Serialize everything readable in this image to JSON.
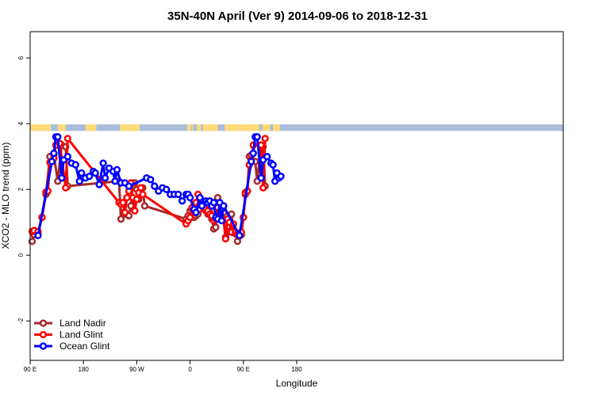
{
  "chart_data": {
    "type": "line",
    "title": "35N-40N April (Ver 9)   2014-09-06 to 2018-12-31",
    "xlabel": "Longitude",
    "ylabel": "XCO2 - MLO trend (ppm)",
    "xlim": [
      -90,
      180
    ],
    "ylim": [
      -3.2,
      6.8
    ],
    "x_ticks": [
      {
        "value": -90,
        "label": "90 E"
      },
      {
        "value": -63,
        "label": "180"
      },
      {
        "value": -36,
        "label": "90 W"
      },
      {
        "value": -9,
        "label": "0"
      },
      {
        "value": 18,
        "label": "90 E"
      },
      {
        "value": 45,
        "label": "180"
      }
    ],
    "y_ticks": [
      {
        "value": -2,
        "label": "-2"
      },
      {
        "value": 0,
        "label": "0"
      },
      {
        "value": 2,
        "label": "2"
      },
      {
        "value": 4,
        "label": "4"
      },
      {
        "value": 6,
        "label": "6"
      }
    ],
    "grid": false,
    "legend_position": "bottom-left",
    "surface_band": {
      "y_range": [
        3.78,
        3.98
      ],
      "land_color": "#FFDB7A",
      "ocean_color": "#A9BEDC",
      "land_segments": [
        [
          -90,
          -79.5
        ],
        [
          -76,
          -72
        ],
        [
          -62,
          -56.5
        ],
        [
          -44.5,
          -34.5
        ],
        [
          -10.5,
          -8.5
        ],
        [
          -8,
          -7.5
        ],
        [
          -5.5,
          -3.5
        ],
        [
          -2.5,
          5
        ],
        [
          8.5,
          26
        ],
        [
          27.5,
          31.5
        ],
        [
          33,
          36.5
        ]
      ]
    },
    "series": [
      {
        "name": "Land Nadir",
        "color": "#A52A2A",
        "points": [
          [
            -89,
            0.42
          ],
          [
            -88,
            0.62
          ],
          [
            -86,
            0.68
          ],
          [
            -84,
            1.15
          ],
          [
            -82,
            1.85
          ],
          [
            -80,
            3.0
          ],
          [
            -78,
            3.05
          ],
          [
            -76,
            2.25
          ],
          [
            -74,
            3.35
          ],
          [
            -72,
            3.3
          ],
          [
            -71,
            2.1
          ],
          [
            -45,
            2.25
          ],
          [
            -44,
            1.1
          ],
          [
            -43,
            1.3
          ],
          [
            -42,
            1.25
          ],
          [
            -40,
            1.2
          ],
          [
            -39,
            1.5
          ],
          [
            -38,
            2.2
          ],
          [
            -37,
            2.2
          ],
          [
            -36,
            2.0
          ],
          [
            -35,
            1.7
          ],
          [
            -34,
            1.85
          ],
          [
            -33,
            2.05
          ],
          [
            -32,
            1.5
          ],
          [
            -11,
            1.1
          ],
          [
            -10,
            1.2
          ],
          [
            -9,
            1.35
          ],
          [
            -8,
            1.4
          ],
          [
            -7,
            1.15
          ],
          [
            -6,
            1.2
          ],
          [
            -5,
            1.25
          ],
          [
            -4,
            1.4
          ],
          [
            -3,
            1.5
          ],
          [
            -2,
            1.6
          ],
          [
            -1,
            1.35
          ],
          [
            0,
            1.25
          ],
          [
            1,
            1.3
          ],
          [
            2,
            1.1
          ],
          [
            3,
            0.8
          ],
          [
            4,
            0.85
          ],
          [
            5,
            1.75
          ],
          [
            6,
            1.15
          ],
          [
            7,
            1.45
          ],
          [
            8,
            1.3
          ],
          [
            9,
            0.55
          ],
          [
            10,
            0.7
          ],
          [
            11,
            0.72
          ],
          [
            12,
            1.25
          ],
          [
            13,
            0.68
          ],
          [
            14,
            0.65
          ],
          [
            15,
            0.42
          ],
          [
            16,
            0.58
          ],
          [
            17,
            0.62
          ],
          [
            18,
            1.15
          ],
          [
            19,
            1.85
          ],
          [
            20,
            1.95
          ],
          [
            21,
            3.0
          ],
          [
            22,
            3.05
          ],
          [
            24,
            2.85
          ],
          [
            25,
            2.25
          ],
          [
            27,
            3.35
          ],
          [
            28,
            3.3
          ],
          [
            29,
            2.1
          ]
        ]
      },
      {
        "name": "Land Glint",
        "color": "#FF0000",
        "points": [
          [
            -89,
            0.72
          ],
          [
            -88,
            0.75
          ],
          [
            -86,
            0.72
          ],
          [
            -84,
            1.15
          ],
          [
            -82,
            1.92
          ],
          [
            -81,
            1.95
          ],
          [
            -80,
            2.82
          ],
          [
            -78,
            2.95
          ],
          [
            -77,
            3.35
          ],
          [
            -75,
            3.4
          ],
          [
            -72,
            2.05
          ],
          [
            -71,
            3.55
          ],
          [
            -45,
            1.6
          ],
          [
            -44,
            1.55
          ],
          [
            -43,
            1.6
          ],
          [
            -42,
            1.3
          ],
          [
            -41,
            1.75
          ],
          [
            -40,
            1.95
          ],
          [
            -39,
            2.2
          ],
          [
            -38,
            1.75
          ],
          [
            -37,
            1.35
          ],
          [
            -36,
            1.7
          ],
          [
            -35,
            1.9
          ],
          [
            -34,
            2.05
          ],
          [
            -33,
            1.85
          ],
          [
            -11,
            0.95
          ],
          [
            -10,
            1.05
          ],
          [
            -9,
            1.15
          ],
          [
            -8,
            1.45
          ],
          [
            -7,
            1.3
          ],
          [
            -6,
            1.6
          ],
          [
            -5,
            1.85
          ],
          [
            -4,
            1.55
          ],
          [
            -3,
            1.5
          ],
          [
            -2,
            1.4
          ],
          [
            -1,
            1.4
          ],
          [
            0,
            1.35
          ],
          [
            1,
            1.25
          ],
          [
            2,
            1.2
          ],
          [
            3,
            1.05
          ],
          [
            4,
            1.1
          ],
          [
            5,
            1.45
          ],
          [
            6,
            1.1
          ],
          [
            7,
            1.4
          ],
          [
            8,
            1.05
          ],
          [
            9,
            0.5
          ],
          [
            10,
            1.1
          ],
          [
            11,
            1.0
          ],
          [
            12,
            0.7
          ],
          [
            13,
            0.95
          ],
          [
            14,
            0.7
          ],
          [
            15,
            0.65
          ],
          [
            16,
            0.65
          ],
          [
            17,
            0.7
          ],
          [
            18,
            1.15
          ],
          [
            19,
            1.9
          ],
          [
            20,
            1.95
          ],
          [
            21,
            2.75
          ],
          [
            22,
            2.9
          ],
          [
            23,
            3.35
          ],
          [
            27,
            3.35
          ],
          [
            28,
            2.05
          ],
          [
            29,
            3.55
          ]
        ]
      },
      {
        "name": "Ocean Glint",
        "color": "#0000FF",
        "points": [
          [
            -86,
            0.6
          ],
          [
            -79,
            2.85
          ],
          [
            -78,
            3.1
          ],
          [
            -77,
            3.6
          ],
          [
            -76,
            3.6
          ],
          [
            -74,
            2.35
          ],
          [
            -73,
            2.9
          ],
          [
            -71,
            3.0
          ],
          [
            -69,
            2.8
          ],
          [
            -67,
            2.75
          ],
          [
            -65,
            2.25
          ],
          [
            -64,
            2.5
          ],
          [
            -62,
            2.35
          ],
          [
            -60,
            2.4
          ],
          [
            -58,
            2.55
          ],
          [
            -57,
            2.5
          ],
          [
            -55,
            2.15
          ],
          [
            -53,
            2.8
          ],
          [
            -52,
            2.35
          ],
          [
            -50,
            2.65
          ],
          [
            -48,
            2.55
          ],
          [
            -47,
            2.25
          ],
          [
            -46,
            2.6
          ],
          [
            -44,
            2.2
          ],
          [
            -42,
            2.2
          ],
          [
            -40,
            2.1
          ],
          [
            -31,
            2.35
          ],
          [
            -29,
            2.3
          ],
          [
            -27,
            2.1
          ],
          [
            -25,
            1.95
          ],
          [
            -23,
            2.05
          ],
          [
            -21,
            2.0
          ],
          [
            -19,
            1.85
          ],
          [
            -17,
            1.85
          ],
          [
            -15,
            1.85
          ],
          [
            -13,
            1.65
          ],
          [
            -11,
            1.85
          ],
          [
            -10,
            1.85
          ],
          [
            -9,
            1.75
          ],
          [
            -7,
            1.4
          ],
          [
            -6,
            1.3
          ],
          [
            -4,
            1.75
          ],
          [
            -3,
            1.5
          ],
          [
            -1,
            1.65
          ],
          [
            0,
            1.6
          ],
          [
            1,
            1.65
          ],
          [
            2,
            1.5
          ],
          [
            3,
            1.6
          ],
          [
            4,
            1.15
          ],
          [
            5,
            1.1
          ],
          [
            6,
            1.6
          ],
          [
            7,
            1.05
          ],
          [
            8,
            1.5
          ],
          [
            16,
            0.6
          ],
          [
            22,
            2.85
          ],
          [
            23,
            3.1
          ],
          [
            24,
            3.6
          ],
          [
            25,
            3.6
          ],
          [
            27,
            2.35
          ],
          [
            28,
            2.9
          ],
          [
            30,
            3.0
          ],
          [
            32,
            2.8
          ],
          [
            33,
            2.75
          ],
          [
            34,
            2.25
          ],
          [
            35,
            2.5
          ],
          [
            36,
            2.35
          ],
          [
            37,
            2.4
          ]
        ]
      }
    ]
  }
}
